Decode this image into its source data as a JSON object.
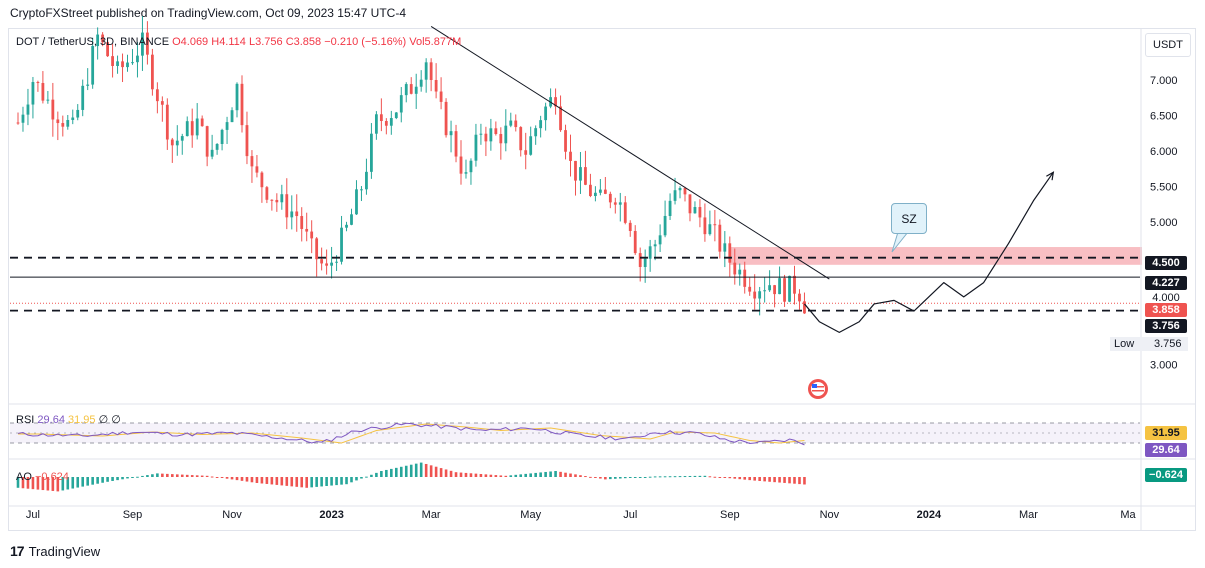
{
  "header": {
    "publisher_line": "CryptoFXStreet published on TradingView.com, Oct 09, 2023 15:47 UTC-4"
  },
  "legend": {
    "symbol": "DOT / TetherUS, 3D, BINANCE",
    "open": "O4.069",
    "high": "H4.114",
    "low": "L3.756",
    "close": "C3.858",
    "change": "−0.210 (−5.16%)",
    "volume": "Vol5.877M"
  },
  "currency_button": "USDT",
  "price_tags": {
    "level_4500": "4.500",
    "level_4227": "4.227",
    "level_4000": "4.000",
    "current": "3.858",
    "low": "3.756",
    "low_label": "Low",
    "low_value": "3.756"
  },
  "annotation": {
    "sz_label": "SZ"
  },
  "rsi": {
    "label": "RSI",
    "value": "29.64",
    "ma": "31.95",
    "extra": "∅ ∅",
    "tag_ma": "31.95",
    "tag_value": "29.64"
  },
  "ao": {
    "label": "AO",
    "value": "−0.624",
    "tag_value": "−0.624"
  },
  "footer": {
    "brand": "TradingView",
    "logo": "17"
  },
  "colors": {
    "up": "#26a69a",
    "down": "#ef5350",
    "supply_zone": "#f7b7bc",
    "rsi_line": "#7e57c2",
    "rsi_ma": "#f5c342",
    "current_tag": "#ef5350",
    "ao_tag": "#089981"
  },
  "chart_data": {
    "type": "candlestick",
    "title": "DOT / TetherUS, 3D, BINANCE",
    "xlabel": "",
    "ylabel": "USDT",
    "ylim": [
      2.5,
      7.7
    ],
    "y_ticks": [
      "7.000",
      "6.500",
      "6.000",
      "5.500",
      "5.000",
      "4.500",
      "4.000",
      "3.000"
    ],
    "y_tick_values": [
      7.0,
      6.5,
      6.0,
      5.5,
      5.0,
      4.5,
      4.0,
      3.0
    ],
    "x_ticks": [
      "Jul",
      "Sep",
      "Nov",
      "2023",
      "Mar",
      "May",
      "Jul",
      "Sep",
      "Nov",
      "2024",
      "Mar",
      "Ma"
    ],
    "x_tick_months": [
      0,
      2,
      4,
      6,
      8,
      10,
      12,
      14,
      16,
      18,
      20,
      22
    ],
    "x_start_month": -0.3,
    "x_end_month": 22.0,
    "horizontal_levels": [
      {
        "name": "resistance",
        "value": 4.5,
        "style": "dashed"
      },
      {
        "name": "mid",
        "value": 4.227,
        "style": "solid"
      },
      {
        "name": "support",
        "value": 3.756,
        "style": "dashed"
      }
    ],
    "supply_zone": {
      "from_month": 14.0,
      "to_month": 22.0,
      "low": 4.4,
      "high": 4.65,
      "label": "SZ"
    },
    "trendline": {
      "from_month": 8.0,
      "from_value": 7.75,
      "to_month": 16.0,
      "to_value": 4.2
    },
    "price_anchors": [
      [
        -0.3,
        6.4
      ],
      [
        0.0,
        7.0
      ],
      [
        0.4,
        6.6
      ],
      [
        0.8,
        6.3
      ],
      [
        1.3,
        7.6
      ],
      [
        1.7,
        7.1
      ],
      [
        2.2,
        7.5
      ],
      [
        2.5,
        6.8
      ],
      [
        2.8,
        6.1
      ],
      [
        3.3,
        6.4
      ],
      [
        3.6,
        5.9
      ],
      [
        4.1,
        6.9
      ],
      [
        4.4,
        5.7
      ],
      [
        4.9,
        5.3
      ],
      [
        5.3,
        5.1
      ],
      [
        5.6,
        4.6
      ],
      [
        5.9,
        4.3
      ],
      [
        6.3,
        4.9
      ],
      [
        6.6,
        5.5
      ],
      [
        6.9,
        6.4
      ],
      [
        7.3,
        6.6
      ],
      [
        7.6,
        6.9
      ],
      [
        7.9,
        7.3
      ],
      [
        8.1,
        6.7
      ],
      [
        8.4,
        6.2
      ],
      [
        8.7,
        5.6
      ],
      [
        9.0,
        6.3
      ],
      [
        9.3,
        6.2
      ],
      [
        9.6,
        6.3
      ],
      [
        9.9,
        6.0
      ],
      [
        10.2,
        6.5
      ],
      [
        10.5,
        6.8
      ],
      [
        10.8,
        5.8
      ],
      [
        11.1,
        5.5
      ],
      [
        11.4,
        5.3
      ],
      [
        11.7,
        5.4
      ],
      [
        12.0,
        5.0
      ],
      [
        12.2,
        4.4
      ],
      [
        12.5,
        4.7
      ],
      [
        12.8,
        5.3
      ],
      [
        13.0,
        5.4
      ],
      [
        13.2,
        5.2
      ],
      [
        13.5,
        5.0
      ],
      [
        13.7,
        4.8
      ],
      [
        13.95,
        4.5
      ],
      [
        14.2,
        4.3
      ],
      [
        14.5,
        4.1
      ],
      [
        14.8,
        4.15
      ],
      [
        15.1,
        4.05
      ],
      [
        15.35,
        4.1
      ],
      [
        15.5,
        3.86
      ]
    ],
    "projection": [
      [
        15.5,
        3.85
      ],
      [
        15.8,
        3.6
      ],
      [
        16.2,
        3.45
      ],
      [
        16.6,
        3.6
      ],
      [
        16.9,
        3.85
      ],
      [
        17.3,
        3.9
      ],
      [
        17.7,
        3.75
      ],
      [
        18.0,
        3.95
      ],
      [
        18.3,
        4.15
      ],
      [
        18.7,
        3.95
      ],
      [
        19.1,
        4.15
      ],
      [
        19.6,
        4.7
      ],
      [
        20.1,
        5.3
      ],
      [
        20.5,
        5.7
      ]
    ],
    "rsi": {
      "current": 29.64,
      "ma": 31.95,
      "upper_band": 70,
      "lower_band": 30,
      "anchors": [
        [
          -0.3,
          48
        ],
        [
          1.0,
          44
        ],
        [
          2.0,
          52
        ],
        [
          3.0,
          47
        ],
        [
          4.0,
          50
        ],
        [
          5.0,
          40
        ],
        [
          5.8,
          30
        ],
        [
          6.5,
          55
        ],
        [
          7.5,
          68
        ],
        [
          8.3,
          62
        ],
        [
          9.0,
          55
        ],
        [
          10.0,
          60
        ],
        [
          11.0,
          45
        ],
        [
          12.0,
          38
        ],
        [
          12.5,
          52
        ],
        [
          13.3,
          50
        ],
        [
          14.0,
          35
        ],
        [
          14.6,
          30
        ],
        [
          15.2,
          36
        ],
        [
          15.5,
          29.64
        ]
      ]
    },
    "ao": {
      "current": -0.624,
      "anchors": [
        [
          -0.3,
          -0.9
        ],
        [
          0.5,
          -1.2
        ],
        [
          1.5,
          -0.4
        ],
        [
          2.5,
          0.3
        ],
        [
          3.5,
          0.1
        ],
        [
          4.5,
          -0.5
        ],
        [
          5.5,
          -0.9
        ],
        [
          6.3,
          -0.6
        ],
        [
          7.0,
          0.5
        ],
        [
          7.8,
          1.2
        ],
        [
          8.5,
          0.4
        ],
        [
          9.5,
          0.1
        ],
        [
          10.5,
          0.5
        ],
        [
          11.5,
          -0.2
        ],
        [
          12.5,
          0.05
        ],
        [
          13.5,
          0.1
        ],
        [
          14.5,
          -0.3
        ],
        [
          15.5,
          -0.624
        ]
      ]
    }
  }
}
